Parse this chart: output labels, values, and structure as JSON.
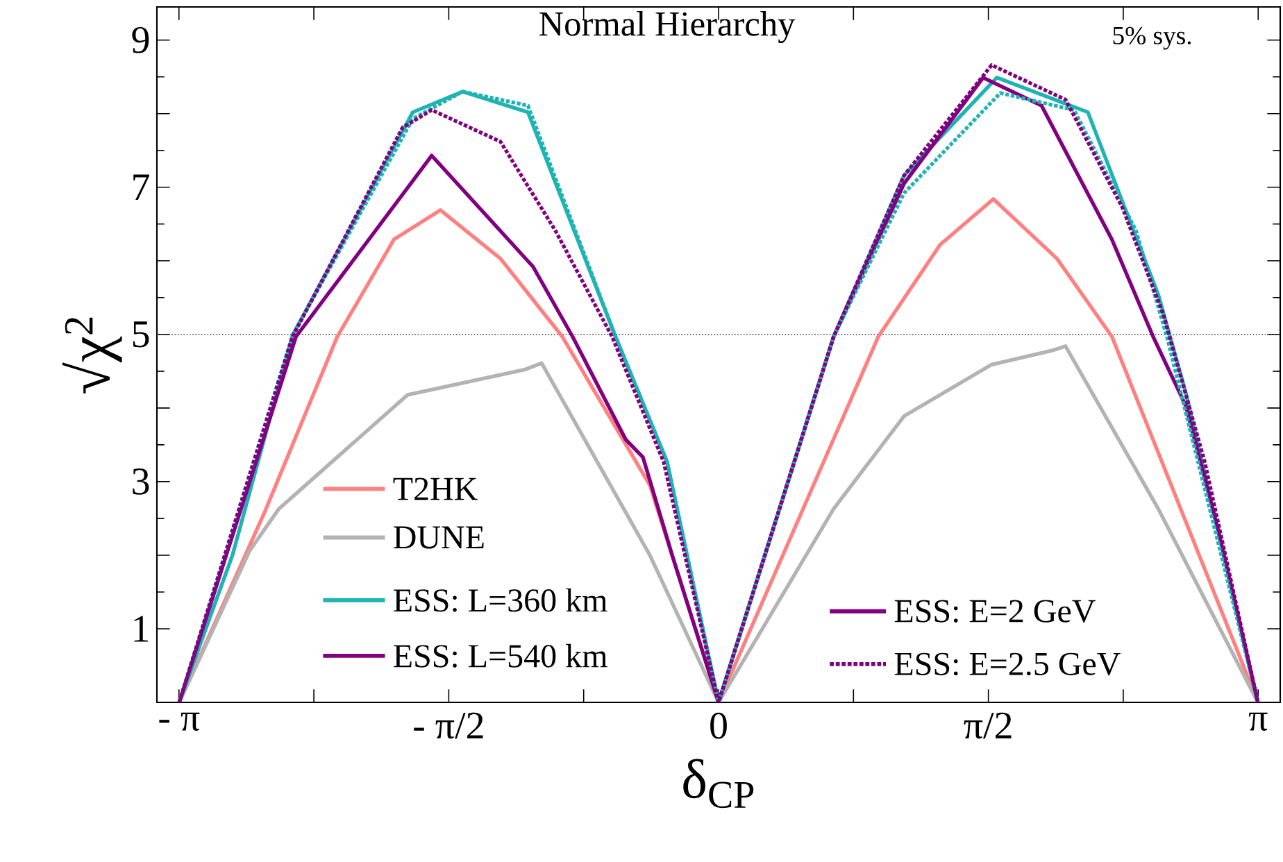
{
  "chart_data": {
    "type": "line",
    "title": "Normal Hierarchy",
    "xlabel": "δ$_{CP}$",
    "ylabel": "√χ$^{2}$",
    "annotations": [
      "5% sys.",
      "ESS: E=2 GeV"
    ],
    "xlim": [
      -3.27,
      3.27
    ],
    "ylim": [
      0,
      9.45
    ],
    "xticks": [
      {
        "value": -3.1416,
        "label": "- π"
      },
      {
        "value": -2.3562,
        "label": null
      },
      {
        "value": -1.5708,
        "label": "- π/2"
      },
      {
        "value": -0.7854,
        "label": null
      },
      0,
      {
        "value": 0.7854,
        "label": null
      },
      {
        "value": 1.5708,
        "label": "π/2"
      },
      {
        "value": 2.3562,
        "label": null
      },
      {
        "value": 3.1416,
        "label": "π"
      }
    ],
    "yticks": [
      1,
      {
        "value": 2,
        "label": null
      },
      3,
      {
        "value": 4,
        "label": null
      },
      5,
      {
        "value": 6,
        "label": null
      },
      7,
      {
        "value": 8,
        "label": null
      },
      9
    ],
    "ref_lines": [
      {
        "axis": "y",
        "value": 5,
        "color": "#555555",
        "line_style": "dotted"
      }
    ],
    "legend": "bottom",
    "series": [
      {
        "name": "T2HK",
        "color": "#ff8080",
        "line_style": "solid",
        "x": [
          -3.14,
          -2.64,
          -2.22,
          -1.89,
          -1.62,
          -1.27,
          -0.91,
          -0.4,
          0,
          0.93,
          1.29,
          1.6,
          1.97,
          2.29,
          3.14
        ],
        "values": [
          0,
          2.6,
          4.97,
          6.29,
          6.69,
          6.03,
          4.97,
          2.95,
          0,
          4.97,
          6.22,
          6.84,
          6.03,
          4.97,
          0
        ]
      },
      {
        "name": "DUNE",
        "color": "#b3b3b3",
        "line_style": "solid",
        "x": [
          -3.14,
          -2.73,
          -2.56,
          -1.81,
          -1.13,
          -1.03,
          -0.4,
          0,
          0.67,
          1.08,
          1.59,
          1.94,
          2.02,
          2.56,
          3.14
        ],
        "values": [
          0,
          2.06,
          2.63,
          4.18,
          4.52,
          4.61,
          2.0,
          0,
          2.63,
          3.89,
          4.59,
          4.78,
          4.84,
          2.63,
          0
        ]
      },
      {
        "name": "ESS: L=360 km",
        "color": "#1fb3b3",
        "line_style": "solid",
        "x": [
          -3.14,
          -2.83,
          -2.48,
          -1.78,
          -1.49,
          -1.11,
          -0.6,
          -0.3,
          0,
          0.67,
          1.08,
          1.62,
          2.15,
          2.56,
          2.72,
          3.14
        ],
        "values": [
          0,
          2.0,
          4.99,
          8.02,
          8.3,
          8.02,
          4.97,
          3.27,
          0,
          4.97,
          7.16,
          8.49,
          8.02,
          5.54,
          4.21,
          0
        ]
      },
      {
        "name": "ESS: L=540 km",
        "color": "#800080",
        "line_style": "solid",
        "x": [
          -3.14,
          -2.46,
          -1.67,
          -1.08,
          -0.85,
          -0.54,
          -0.44,
          -0.27,
          0,
          0.67,
          1.08,
          1.54,
          1.88,
          2.29,
          2.53,
          2.72,
          2.91,
          3.14
        ],
        "values": [
          0,
          4.97,
          7.43,
          5.92,
          4.97,
          3.57,
          3.33,
          2.0,
          0,
          4.97,
          7.05,
          8.49,
          8.11,
          6.29,
          4.97,
          4.03,
          2.33,
          0
        ]
      },
      {
        "color": "#1fb3b3",
        "line_style": "dotted",
        "x": [
          -3.14,
          -2.48,
          -1.78,
          -1.49,
          -1.11,
          -0.6,
          -0.3,
          0,
          0.67,
          1.08,
          1.64,
          2.07,
          2.43,
          2.61,
          3.14
        ],
        "values": [
          0,
          4.99,
          7.93,
          8.3,
          8.11,
          4.97,
          3.27,
          0,
          4.97,
          6.92,
          8.28,
          8.05,
          6.41,
          4.97,
          0
        ]
      },
      {
        "name": "ESS: E=2.5 GeV",
        "color": "#800080",
        "line_style": "dotted",
        "x": [
          -3.14,
          -2.48,
          -1.84,
          -1.67,
          -1.27,
          -0.95,
          -0.62,
          -0.32,
          0,
          0.67,
          1.08,
          1.59,
          2.02,
          2.35,
          2.59,
          2.83,
          3.14
        ],
        "values": [
          0,
          4.97,
          7.81,
          8.05,
          7.62,
          6.41,
          4.97,
          3.27,
          0,
          4.97,
          7.16,
          8.66,
          8.19,
          6.73,
          5.27,
          3.27,
          0
        ]
      }
    ]
  }
}
